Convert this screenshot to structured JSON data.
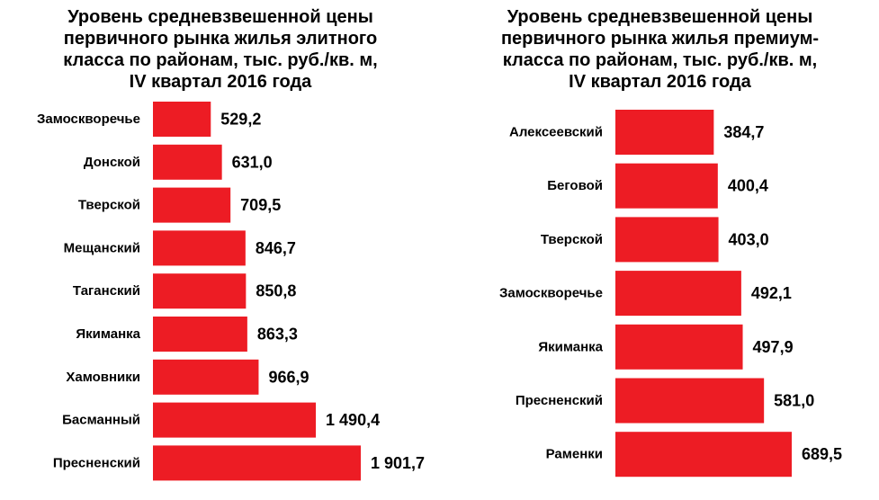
{
  "chart_data": [
    {
      "type": "bar",
      "orientation": "horizontal",
      "title": "Уровень средневзвешенной цены\nпервичного рынка жилья элитного\nкласса  по районам, тыс. руб./кв. м,\nIV квартал 2016 года",
      "categories": [
        "Замоскворечье",
        "Донской",
        "Тверской",
        "Мещанский",
        "Таганский",
        "Якиманка",
        "Хамовники",
        "Басманный",
        "Пресненский"
      ],
      "values": [
        529.2,
        631.0,
        709.5,
        846.7,
        850.8,
        863.3,
        966.9,
        1490.4,
        1901.7
      ],
      "value_labels": [
        "529,2",
        "631,0",
        "709,5",
        "846,7",
        "850,8",
        "863,3",
        "966,9",
        "1 490,4",
        "1 901,7"
      ],
      "xlim": [
        0,
        1901.7
      ],
      "bar_color": "#ed1c24",
      "grid": false
    },
    {
      "type": "bar",
      "orientation": "horizontal",
      "title": "Уровень средневзвешенной цены\nпервичного рынка жилья премиум-\nкласса  по районам, тыс. руб./кв. м,\nIV квартал 2016 года",
      "categories": [
        "Алексеевский",
        "Беговой",
        "Тверской",
        "Замоскворечье",
        "Якиманка",
        "Пресненский",
        "Раменки"
      ],
      "values": [
        384.7,
        400.4,
        403.0,
        492.1,
        497.9,
        581.0,
        689.5
      ],
      "value_labels": [
        "384,7",
        "400,4",
        "403,0",
        "492,1",
        "497,9",
        "581,0",
        "689,5"
      ],
      "xlim": [
        0,
        689.5
      ],
      "bar_color": "#ed1c24",
      "grid": false
    }
  ]
}
